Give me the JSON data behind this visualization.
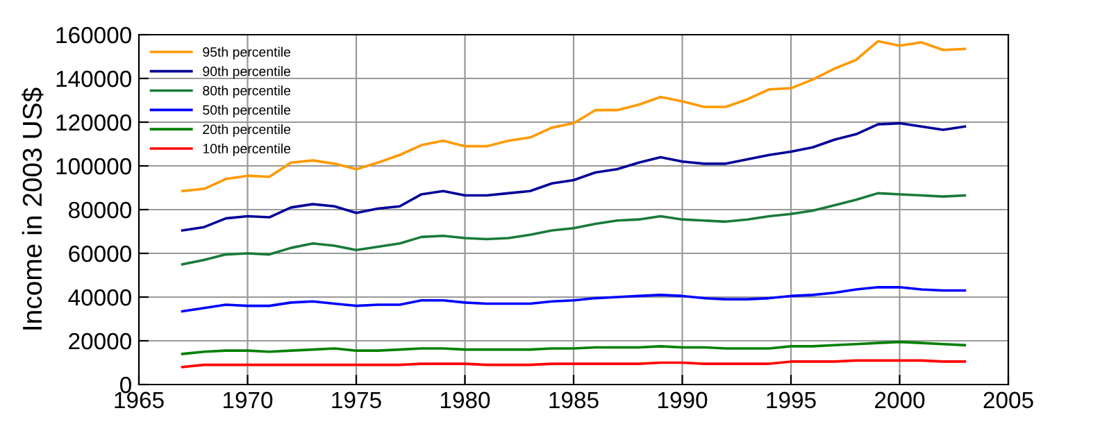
{
  "chart_data": {
    "type": "line",
    "ylabel": "Income in 2003 US$",
    "x": [
      1967,
      1968,
      1969,
      1970,
      1971,
      1972,
      1973,
      1974,
      1975,
      1976,
      1977,
      1978,
      1979,
      1980,
      1981,
      1982,
      1983,
      1984,
      1985,
      1986,
      1987,
      1988,
      1989,
      1990,
      1991,
      1992,
      1993,
      1994,
      1995,
      1996,
      1997,
      1998,
      1999,
      2000,
      2001,
      2002,
      2003
    ],
    "series": [
      {
        "name": "95th percentile",
        "color": "#ff9900",
        "values": [
          88500,
          89500,
          94000,
          95500,
          95000,
          101500,
          102500,
          101000,
          98500,
          101500,
          105000,
          109500,
          111500,
          109000,
          109000,
          111500,
          113000,
          117500,
          119500,
          125500,
          125500,
          128000,
          131500,
          129500,
          127000,
          127000,
          130500,
          135000,
          135500,
          139500,
          144500,
          148500,
          157000,
          155000,
          156500,
          153000,
          153500
        ]
      },
      {
        "name": "90th percentile",
        "color": "#000099",
        "values": [
          70500,
          72000,
          76000,
          77000,
          76500,
          81000,
          82500,
          81500,
          78500,
          80500,
          81500,
          87000,
          88500,
          86500,
          86500,
          87500,
          88500,
          92000,
          93500,
          97000,
          98500,
          101500,
          104000,
          102000,
          101000,
          101000,
          103000,
          105000,
          106500,
          108500,
          112000,
          114500,
          119000,
          119500,
          118000,
          116500,
          118000
        ]
      },
      {
        "name": "80th percentile",
        "color": "#1a7a3a",
        "values": [
          55000,
          57000,
          59500,
          60000,
          59500,
          62500,
          64500,
          63500,
          61500,
          63000,
          64500,
          67500,
          68000,
          67000,
          66500,
          67000,
          68500,
          70500,
          71500,
          73500,
          75000,
          75500,
          77000,
          75500,
          75000,
          74500,
          75500,
          77000,
          78000,
          79500,
          82000,
          84500,
          87500,
          87000,
          86500,
          86000,
          86500
        ]
      },
      {
        "name": "50th percentile",
        "color": "#0000ff",
        "values": [
          33500,
          35000,
          36500,
          36000,
          36000,
          37500,
          38000,
          37000,
          36000,
          36500,
          36500,
          38500,
          38500,
          37500,
          37000,
          37000,
          37000,
          38000,
          38500,
          39500,
          40000,
          40500,
          41000,
          40500,
          39500,
          39000,
          39000,
          39500,
          40500,
          41000,
          42000,
          43500,
          44500,
          44500,
          43500,
          43000,
          43000
        ]
      },
      {
        "name": "20th percentile",
        "color": "#008000",
        "values": [
          14000,
          15000,
          15500,
          15500,
          15000,
          15500,
          16000,
          16500,
          15500,
          15500,
          16000,
          16500,
          16500,
          16000,
          16000,
          16000,
          16000,
          16500,
          16500,
          17000,
          17000,
          17000,
          17500,
          17000,
          17000,
          16500,
          16500,
          16500,
          17500,
          17500,
          18000,
          18500,
          19000,
          19500,
          19000,
          18500,
          18000
        ]
      },
      {
        "name": "10th percentile",
        "color": "#ff0000",
        "values": [
          8000,
          9000,
          9000,
          9000,
          9000,
          9000,
          9000,
          9000,
          9000,
          9000,
          9000,
          9500,
          9500,
          9500,
          9000,
          9000,
          9000,
          9500,
          9500,
          9500,
          9500,
          9500,
          10000,
          10000,
          9500,
          9500,
          9500,
          9500,
          10500,
          10500,
          10500,
          11000,
          11000,
          11000,
          11000,
          10500,
          10500
        ]
      }
    ],
    "xlim": [
      1965,
      2005
    ],
    "ylim": [
      0,
      160000
    ],
    "xticks": [
      1965,
      1970,
      1975,
      1980,
      1985,
      1990,
      1995,
      2000,
      2005
    ],
    "yticks": [
      0,
      20000,
      40000,
      60000,
      80000,
      100000,
      120000,
      140000,
      160000
    ],
    "grid": true,
    "legend": "top left",
    "marker": "none",
    "line_style": "solid"
  }
}
